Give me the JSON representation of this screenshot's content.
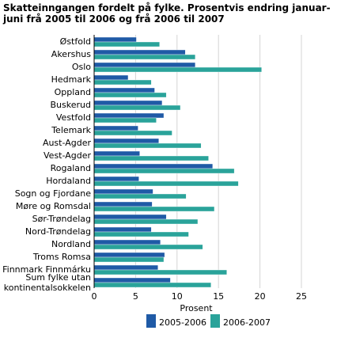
{
  "chart_data": {
    "type": "bar",
    "orientation": "horizontal",
    "title": "Skatteinngangen fordelt på fylke. Prosentvis endring januar-juni frå 2005 til 2006 og frå 2006 til 2007",
    "xlabel": "Prosent",
    "xlim": [
      0,
      25
    ],
    "xticks": [
      0,
      5,
      10,
      15,
      20,
      25
    ],
    "grid": true,
    "legend": "bottom",
    "categories": [
      "Østfold",
      "Akershus",
      "Oslo",
      "Hedmark",
      "Oppland",
      "Buskerud",
      "Vestfold",
      "Telemark",
      "Aust-Agder",
      "Vest-Agder",
      "Rogaland",
      "Hordaland",
      "Sogn og Fjordane",
      "Møre og Romsdal",
      "Sør-Trøndelag",
      "Nord-Trøndelag",
      "Nordland",
      "Troms Romsa",
      "Finnmark Finnmárku",
      [
        "Sum fylke utan",
        "kontinentalsokkelen"
      ]
    ],
    "series": [
      {
        "name": "2005-2006",
        "color": "#1f5aa6",
        "values": [
          5.1,
          11.0,
          12.2,
          4.1,
          7.3,
          8.2,
          8.4,
          5.3,
          7.8,
          5.5,
          14.3,
          5.4,
          7.1,
          7.0,
          8.7,
          6.9,
          8.0,
          8.5,
          7.7,
          9.2
        ]
      },
      {
        "name": "2006-2007",
        "color": "#2aa39a",
        "values": [
          7.9,
          12.2,
          20.2,
          6.9,
          8.7,
          10.4,
          7.5,
          9.4,
          12.9,
          13.8,
          16.9,
          17.4,
          11.1,
          14.5,
          12.5,
          11.4,
          13.1,
          8.4,
          16.0,
          14.1
        ]
      }
    ]
  }
}
